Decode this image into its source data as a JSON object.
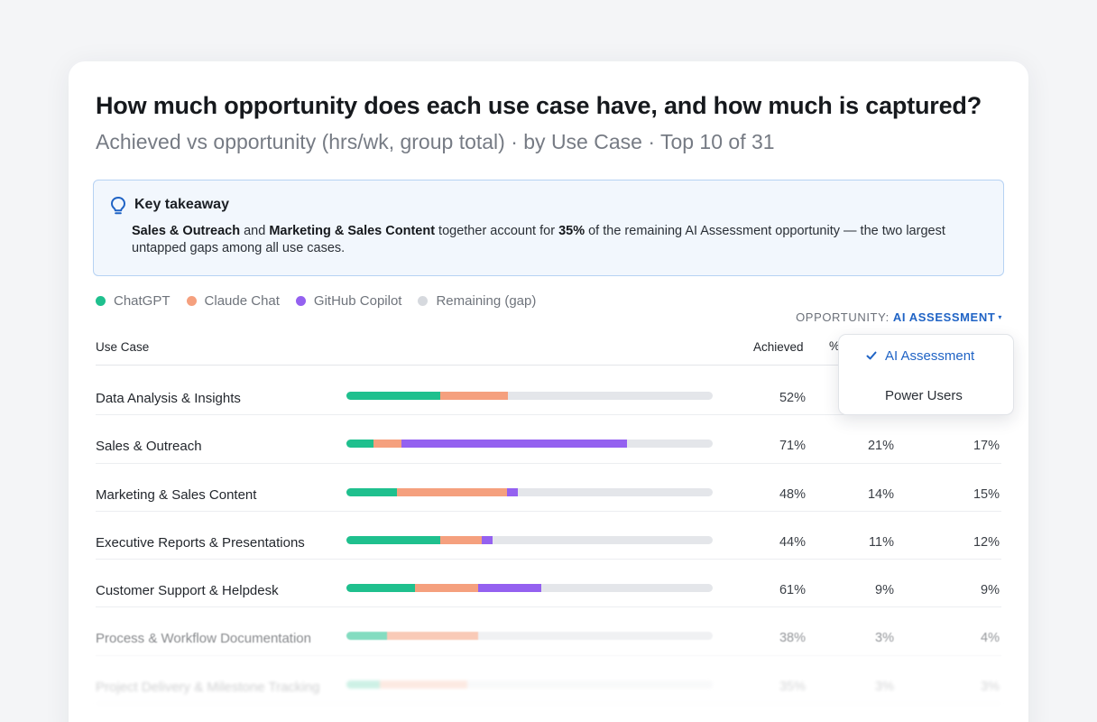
{
  "title": "How much opportunity does each use case have, and how much is captured?",
  "subtitle": "Achieved vs opportunity (hrs/wk, group total) · by Use Case · Top 10 of 31",
  "takeaway": {
    "icon": "lightbulb-icon",
    "title": "Key takeaway",
    "bold1": "Sales & Outreach",
    "text1": " and ",
    "bold2": "Marketing & Sales Content",
    "text2": " together account for ",
    "bold3": "35%",
    "text3": " of the remaining AI Assessment opportunity — the two largest untapped gaps among all use cases."
  },
  "legend": [
    {
      "label": "ChatGPT",
      "color": "#1fc08e"
    },
    {
      "label": "Claude Chat",
      "color": "#f5a07e"
    },
    {
      "label": "GitHub Copilot",
      "color": "#9461f0"
    },
    {
      "label": "Remaining (gap)",
      "color": "#d6d9de"
    }
  ],
  "opportunity": {
    "label": "OPPORTUNITY:",
    "value": "AI ASSESSMENT",
    "caret": "▾"
  },
  "table": {
    "col_use_case": "Use Case",
    "col_achieved": "Achieved",
    "col_pct_peek": "%"
  },
  "dropdown": {
    "selected": "AI Assessment",
    "options": [
      "AI Assessment",
      "Power Users"
    ]
  },
  "colors": {
    "chatgpt": "#1fc08e",
    "claude": "#f5a07e",
    "copilot": "#9461f0",
    "gap": "#e4e6ea",
    "accent": "#1f63c5"
  },
  "rows": [
    {
      "name": "Data Analysis & Insights",
      "chatgpt": 0.255,
      "claude": 0.185,
      "copilot": 0.0,
      "achieved": "52%",
      "col2": "",
      "col3": ""
    },
    {
      "name": "Sales & Outreach",
      "chatgpt": 0.075,
      "claude": 0.075,
      "copilot": 0.615,
      "achieved": "71%",
      "col2": "21%",
      "col3": "17%"
    },
    {
      "name": "Marketing & Sales Content",
      "chatgpt": 0.138,
      "claude": 0.3,
      "copilot": 0.03,
      "achieved": "48%",
      "col2": "14%",
      "col3": "15%"
    },
    {
      "name": "Executive Reports & Presentations",
      "chatgpt": 0.255,
      "claude": 0.115,
      "copilot": 0.03,
      "achieved": "44%",
      "col2": "11%",
      "col3": "12%"
    },
    {
      "name": "Customer Support & Helpdesk",
      "chatgpt": 0.188,
      "claude": 0.172,
      "copilot": 0.172,
      "achieved": "61%",
      "col2": "9%",
      "col3": "9%"
    },
    {
      "name": "Process & Workflow Documentation",
      "chatgpt": 0.11,
      "claude": 0.25,
      "copilot": 0.0,
      "achieved": "38%",
      "col2": "3%",
      "col3": "4%"
    },
    {
      "name": "Project Delivery & Milestone Tracking",
      "chatgpt": 0.09,
      "claude": 0.24,
      "copilot": 0.0,
      "achieved": "35%",
      "col2": "3%",
      "col3": "3%"
    }
  ]
}
